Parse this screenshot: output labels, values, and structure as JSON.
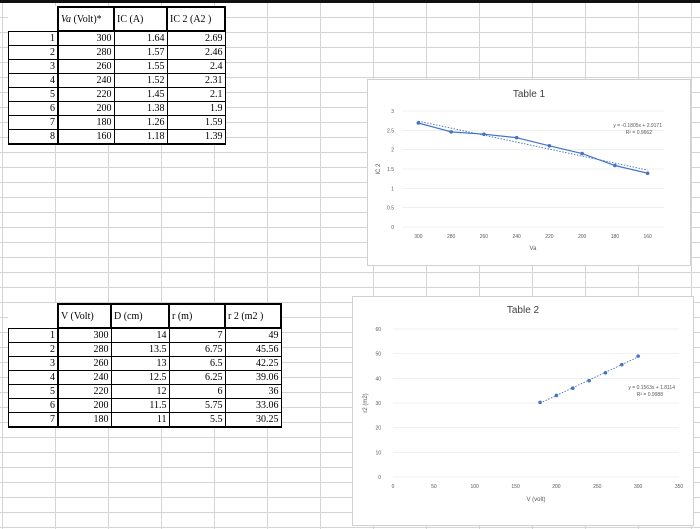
{
  "table1": {
    "headers": [
      "Va (Volt)*",
      "IC (A)",
      "IC 2 (A2 )"
    ],
    "rows": [
      [
        "1",
        "300",
        "1.64",
        "2.69"
      ],
      [
        "2",
        "280",
        "1.57",
        "2.46"
      ],
      [
        "3",
        "260",
        "1.55",
        "2.4"
      ],
      [
        "4",
        "240",
        "1.52",
        "2.31"
      ],
      [
        "5",
        "220",
        "1.45",
        "2.1"
      ],
      [
        "6",
        "200",
        "1.38",
        "1.9"
      ],
      [
        "7",
        "180",
        "1.26",
        "1.59"
      ],
      [
        "8",
        "160",
        "1.18",
        "1.39"
      ]
    ]
  },
  "table2": {
    "headers": [
      "V (Volt)",
      "D (cm)",
      "r (m)",
      "r 2 (m2 )"
    ],
    "rows": [
      [
        "1",
        "300",
        "14",
        "7",
        "49"
      ],
      [
        "2",
        "280",
        "13.5",
        "6.75",
        "45.56"
      ],
      [
        "3",
        "260",
        "13",
        "6.5",
        "42.25"
      ],
      [
        "4",
        "240",
        "12.5",
        "6.25",
        "39.06"
      ],
      [
        "5",
        "220",
        "12",
        "6",
        "36"
      ],
      [
        "6",
        "200",
        "11.5",
        "5.75",
        "33.06"
      ],
      [
        "7",
        "180",
        "11",
        "5.5",
        "30.25"
      ]
    ]
  },
  "chart_data": [
    {
      "type": "line",
      "title": "Table 1",
      "xlabel": "Va",
      "ylabel": "IC 2",
      "x_reversed": true,
      "x": [
        300,
        280,
        260,
        240,
        220,
        200,
        180,
        160
      ],
      "x_ticks": [
        300,
        280,
        260,
        240,
        220,
        200,
        180,
        160
      ],
      "y_ticks": [
        0,
        0.5,
        1,
        1.5,
        2,
        2.5,
        3
      ],
      "ylim": [
        0,
        3
      ],
      "series": [
        {
          "values": [
            2.69,
            2.46,
            2.4,
            2.31,
            2.1,
            1.9,
            1.59,
            1.39
          ],
          "color": "#4472c4"
        }
      ],
      "trendline": {
        "equation": "y = -0.1805x + 2.9171",
        "r2": "R² = 0.9662"
      }
    },
    {
      "type": "scatter",
      "title": "Table 2",
      "xlabel": "V (volt)",
      "ylabel": "r2 (m2)",
      "x": [
        180,
        200,
        220,
        240,
        260,
        280,
        300
      ],
      "xlim": [
        0,
        350
      ],
      "x_ticks": [
        0,
        50,
        100,
        150,
        200,
        250,
        300,
        350
      ],
      "ylim": [
        0,
        60
      ],
      "y_ticks": [
        0,
        10,
        20,
        30,
        40,
        50,
        60
      ],
      "series": [
        {
          "values": [
            30.25,
            33.06,
            36,
            39.06,
            42.25,
            45.56,
            49
          ],
          "color": "#4472c4"
        }
      ],
      "trendline": {
        "equation": "y = 0.1563x + 1.8114",
        "r2": "R² = 0.9988"
      }
    }
  ]
}
